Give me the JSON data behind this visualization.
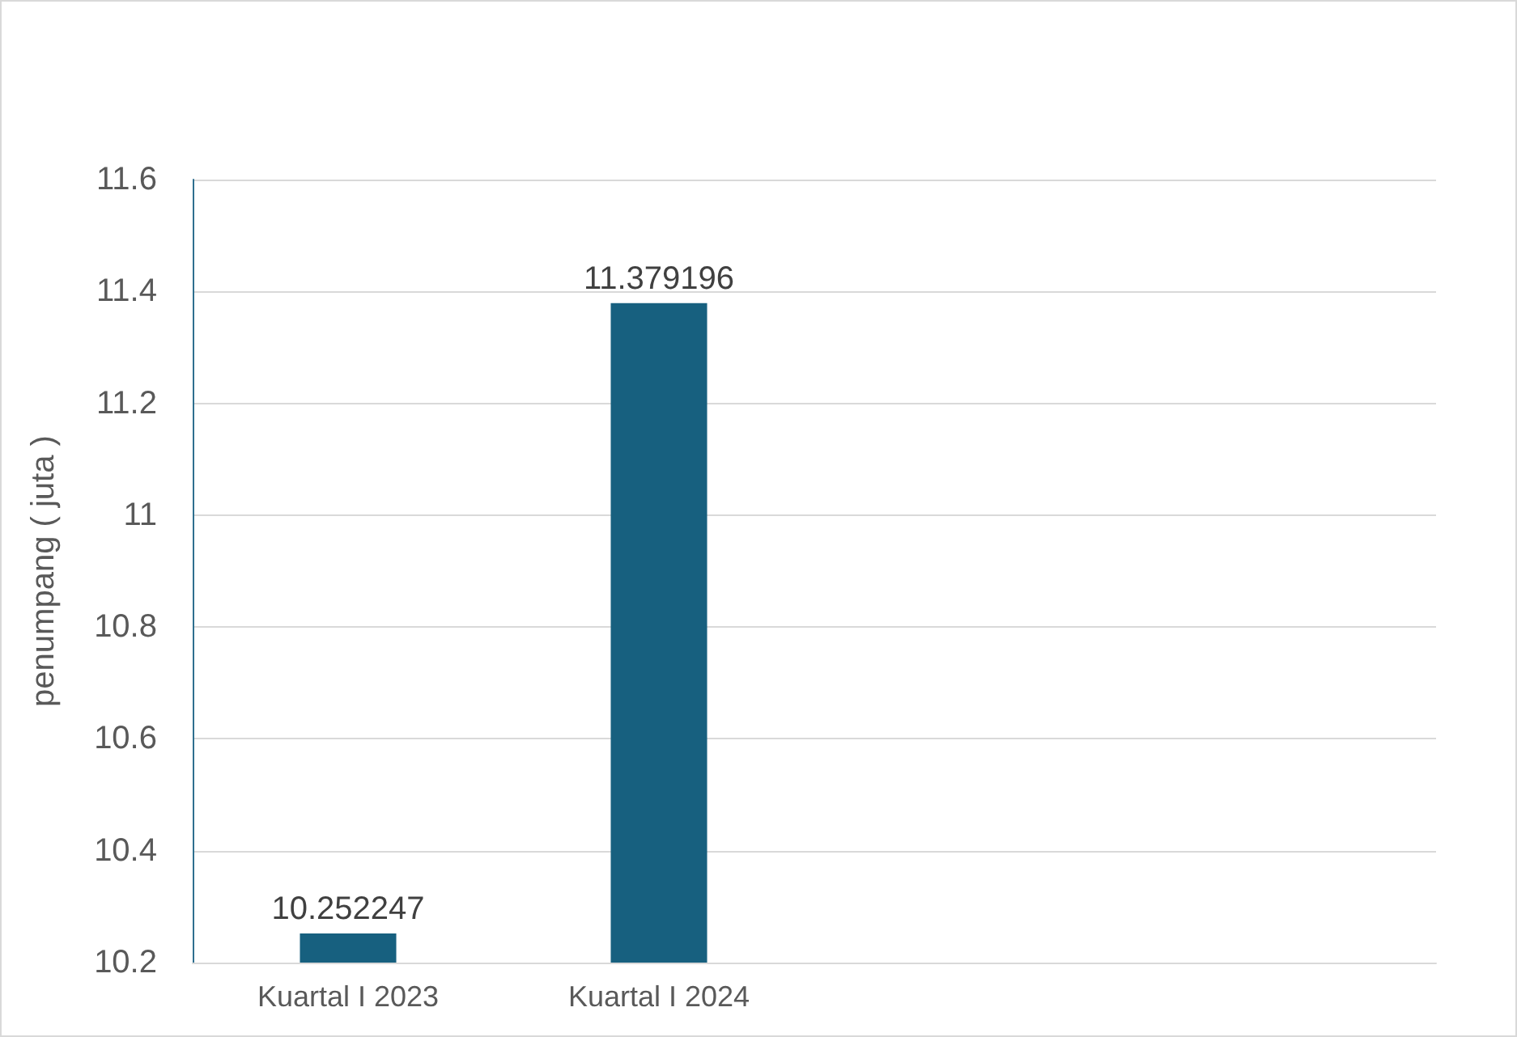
{
  "chart_data": {
    "type": "bar",
    "ylabel": "penumpang ( juta )",
    "categories": [
      "Kuartal I 2023",
      "Kuartal I 2024",
      null,
      null
    ],
    "values": [
      10.252247,
      11.379196,
      null,
      null
    ],
    "color": "#17607f",
    "ylim": [
      10.2,
      11.6
    ],
    "yticks": [
      10.2,
      10.4,
      10.6,
      10.8,
      11,
      11.2,
      11.4,
      11.6
    ],
    "grid": "y",
    "data_labels": true
  }
}
